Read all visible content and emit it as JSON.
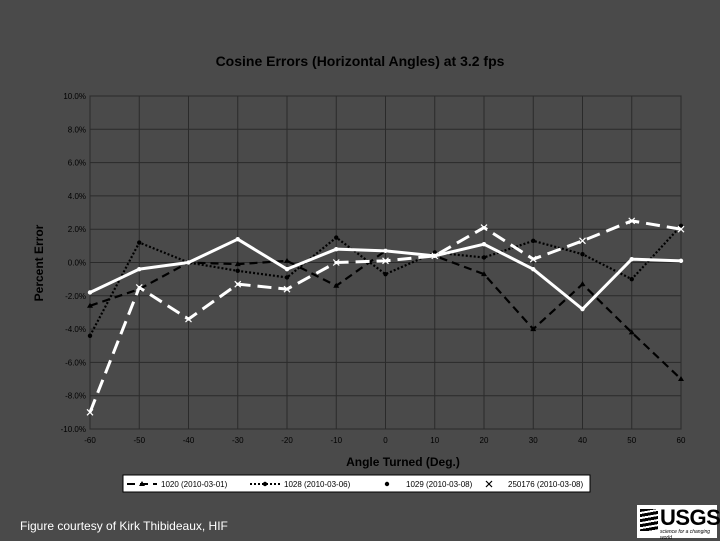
{
  "chart_data": {
    "type": "line",
    "title": "Cosine Errors (Horizontal Angles) at 3.2 fps",
    "xlabel": "Angle Turned (Deg.)",
    "ylabel": "Percent Error",
    "x": [
      -60,
      -50,
      -40,
      -30,
      -20,
      -10,
      0,
      10,
      20,
      30,
      40,
      50,
      60
    ],
    "x_tick_labels": [
      "-60",
      "-50",
      "-40",
      "-30",
      "-20",
      "-10",
      "0",
      "10",
      "20",
      "30",
      "40",
      "50",
      "60"
    ],
    "ylim": [
      -10,
      10
    ],
    "y_tick_values": [
      10,
      8,
      6,
      4,
      2,
      0,
      -2,
      -4,
      -6,
      -8,
      -10
    ],
    "y_tick_labels": [
      "10.0%",
      "8.0%",
      "6.0%",
      "4.0%",
      "2.0%",
      "0.0%",
      "-2.0%",
      "-4.0%",
      "-6.0%",
      "-8.0%",
      "-10.0%"
    ],
    "grid": true,
    "legend_position": "bottom",
    "series": [
      {
        "name": "1020 (2010-03-01)",
        "style": "dashed",
        "marker": "triangle",
        "color": "#000000",
        "values": [
          -2.6,
          -1.6,
          0.0,
          -0.1,
          0.1,
          -1.4,
          0.7,
          0.4,
          -0.7,
          -4.0,
          -1.3,
          -4.2,
          -7.0
        ]
      },
      {
        "name": "1028 (2010-03-06)",
        "style": "dotted",
        "marker": "circle",
        "color": "#000000",
        "values": [
          -4.4,
          1.2,
          0.0,
          -0.5,
          -0.9,
          1.5,
          -0.7,
          0.6,
          0.3,
          1.3,
          0.5,
          -1.0,
          2.2
        ]
      },
      {
        "name": "1029 (2010-03-08)",
        "style": "solid",
        "marker": "circle",
        "color": "#ffffff",
        "values": [
          -1.8,
          -0.4,
          0.0,
          1.4,
          -0.4,
          0.8,
          0.7,
          0.4,
          1.1,
          -0.4,
          -2.8,
          0.2,
          0.1
        ]
      },
      {
        "name": "250176 (2010-03-08)",
        "style": "long-dashed",
        "marker": "x",
        "color": "#ffffff",
        "values": [
          -9.0,
          -1.5,
          -3.4,
          -1.3,
          -1.6,
          0.0,
          0.1,
          0.4,
          2.1,
          0.2,
          1.3,
          2.5,
          2.0
        ]
      }
    ]
  },
  "footer": {
    "credit": "Figure courtesy of Kirk Thibideaux, HIF",
    "logo_text": "USGS",
    "logo_tagline": "science for a changing world"
  }
}
